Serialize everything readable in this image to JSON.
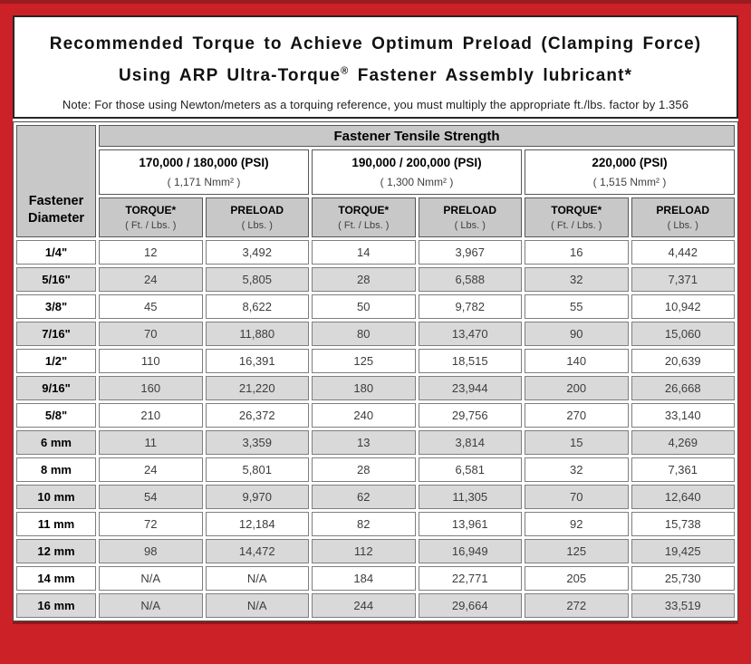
{
  "colors": {
    "frame_red": "#cb2127",
    "frame_dark_red": "#8f191d",
    "header_gray": "#c8c8c8",
    "stripe_gray": "#d9d9d9"
  },
  "header_box": {
    "title_line1": "Recommended Torque to Achieve Optimum Preload (Clamping Force)",
    "title_line2_pre": "Using ARP Ultra-Torque",
    "title_line2_sup": "®",
    "title_line2_post": " Fastener Assembly lubricant*",
    "note": "Note: For those using Newton/meters as a torquing reference, you must multiply the appropriate ft./lbs. factor by 1.356"
  },
  "table": {
    "corner_header": {
      "line1": "Fastener",
      "line2": "Diameter"
    },
    "group_header": "Fastener Tensile Strength",
    "strength_groups": [
      {
        "psi": "170,000 / 180,000 (PSI)",
        "nmm": "( 1,171 Nmm² )"
      },
      {
        "psi": "190,000 / 200,000 (PSI)",
        "nmm": "( 1,300 Nmm² )"
      },
      {
        "psi": "220,000 (PSI)",
        "nmm": "( 1,515 Nmm² )"
      }
    ],
    "col_headers": {
      "torque_label": "TORQUE*",
      "torque_sub": "( Ft. / Lbs. )",
      "preload_label": "PRELOAD",
      "preload_sub": "( Lbs. )"
    },
    "rows": [
      {
        "diameter": "1/4\"",
        "values": [
          "12",
          "3,492",
          "14",
          "3,967",
          "16",
          "4,442"
        ]
      },
      {
        "diameter": "5/16\"",
        "values": [
          "24",
          "5,805",
          "28",
          "6,588",
          "32",
          "7,371"
        ]
      },
      {
        "diameter": "3/8\"",
        "values": [
          "45",
          "8,622",
          "50",
          "9,782",
          "55",
          "10,942"
        ]
      },
      {
        "diameter": "7/16\"",
        "values": [
          "70",
          "11,880",
          "80",
          "13,470",
          "90",
          "15,060"
        ]
      },
      {
        "diameter": "1/2\"",
        "values": [
          "110",
          "16,391",
          "125",
          "18,515",
          "140",
          "20,639"
        ]
      },
      {
        "diameter": "9/16\"",
        "values": [
          "160",
          "21,220",
          "180",
          "23,944",
          "200",
          "26,668"
        ]
      },
      {
        "diameter": "5/8\"",
        "values": [
          "210",
          "26,372",
          "240",
          "29,756",
          "270",
          "33,140"
        ]
      },
      {
        "diameter": "6 mm",
        "values": [
          "11",
          "3,359",
          "13",
          "3,814",
          "15",
          "4,269"
        ]
      },
      {
        "diameter": "8 mm",
        "values": [
          "24",
          "5,801",
          "28",
          "6,581",
          "32",
          "7,361"
        ]
      },
      {
        "diameter": "10 mm",
        "values": [
          "54",
          "9,970",
          "62",
          "11,305",
          "70",
          "12,640"
        ]
      },
      {
        "diameter": "11 mm",
        "values": [
          "72",
          "12,184",
          "82",
          "13,961",
          "92",
          "15,738"
        ]
      },
      {
        "diameter": "12 mm",
        "values": [
          "98",
          "14,472",
          "112",
          "16,949",
          "125",
          "19,425"
        ]
      },
      {
        "diameter": "14 mm",
        "values": [
          "N/A",
          "N/A",
          "184",
          "22,771",
          "205",
          "25,730"
        ]
      },
      {
        "diameter": "16 mm",
        "values": [
          "N/A",
          "N/A",
          "244",
          "29,664",
          "272",
          "33,519"
        ]
      }
    ]
  }
}
